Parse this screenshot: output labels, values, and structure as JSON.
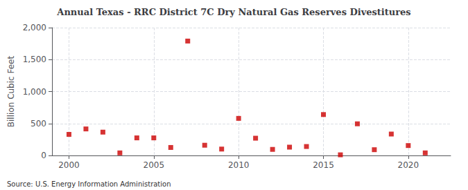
{
  "chart_data": {
    "type": "scatter",
    "title": "Annual Texas - RRC District 7C Dry Natural Gas Reserves Divestitures",
    "ylabel": "Billion Cubic Feet",
    "annotations": [
      "Source: U.S. Energy Information Administration"
    ],
    "x": [
      2000,
      2001,
      2002,
      2003,
      2004,
      2005,
      2006,
      2007,
      2008,
      2009,
      2010,
      2011,
      2012,
      2013,
      2014,
      2015,
      2016,
      2017,
      2018,
      2019,
      2020,
      2021
    ],
    "values": [
      330,
      415,
      365,
      40,
      275,
      275,
      125,
      1790,
      160,
      100,
      580,
      270,
      95,
      130,
      140,
      640,
      10,
      495,
      90,
      335,
      155,
      40
    ],
    "color": "#cc0000",
    "marker": "square",
    "xlim": [
      1999,
      2022.5
    ],
    "xticks": [
      2000,
      2005,
      2010,
      2015,
      2020
    ],
    "ylim": [
      0,
      2000
    ],
    "yticks": [
      0,
      500,
      {
        "value": 1000,
        "label": "1,000"
      },
      {
        "value": 1500,
        "label": "1,500"
      },
      {
        "value": 2000,
        "label": "2,000"
      }
    ],
    "grid": true
  }
}
